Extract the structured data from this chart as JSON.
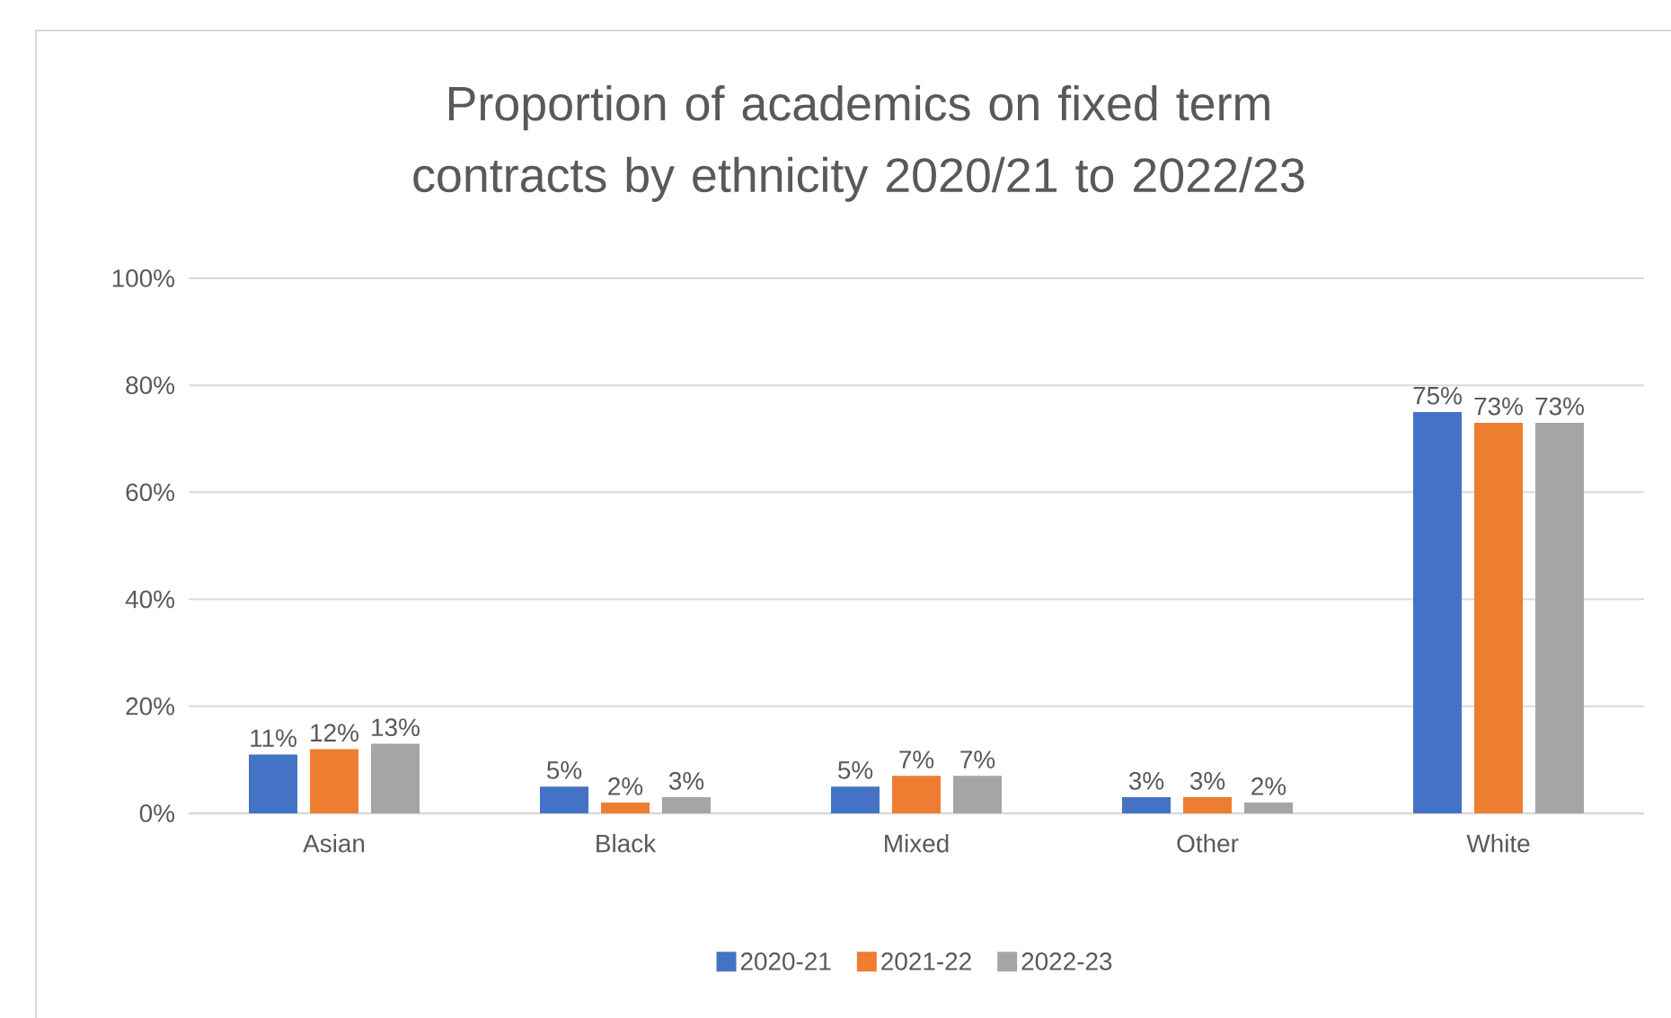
{
  "chart_data": {
    "type": "bar",
    "title": "Proportion of academics on fixed term contracts by ethnicity 2020/21 to 2022/23",
    "categories": [
      "Asian",
      "Black",
      "Mixed",
      "Other",
      "White"
    ],
    "series": [
      {
        "name": "2020-21",
        "color": "#4472c4",
        "values": [
          11,
          5,
          5,
          3,
          75
        ],
        "value_labels": [
          "11%",
          "5%",
          "5%",
          "3%",
          "75%"
        ]
      },
      {
        "name": "2021-22",
        "color": "#ed7d31",
        "values": [
          12,
          2,
          7,
          3,
          73
        ],
        "value_labels": [
          "12%",
          "2%",
          "7%",
          "3%",
          "73%"
        ]
      },
      {
        "name": "2022-23",
        "color": "#a5a5a5",
        "values": [
          13,
          3,
          7,
          2,
          73
        ],
        "value_labels": [
          "13%",
          "3%",
          "7%",
          "2%",
          "73%"
        ]
      }
    ],
    "ylim": [
      0,
      100
    ],
    "yticks": [
      {
        "value": 0,
        "label": "0%"
      },
      {
        "value": 20,
        "label": "20%"
      },
      {
        "value": 40,
        "label": "40%"
      },
      {
        "value": 60,
        "label": "60%"
      },
      {
        "value": 80,
        "label": "80%"
      },
      {
        "value": 100,
        "label": "100%"
      }
    ],
    "grid": "y",
    "legend": "bottom"
  }
}
